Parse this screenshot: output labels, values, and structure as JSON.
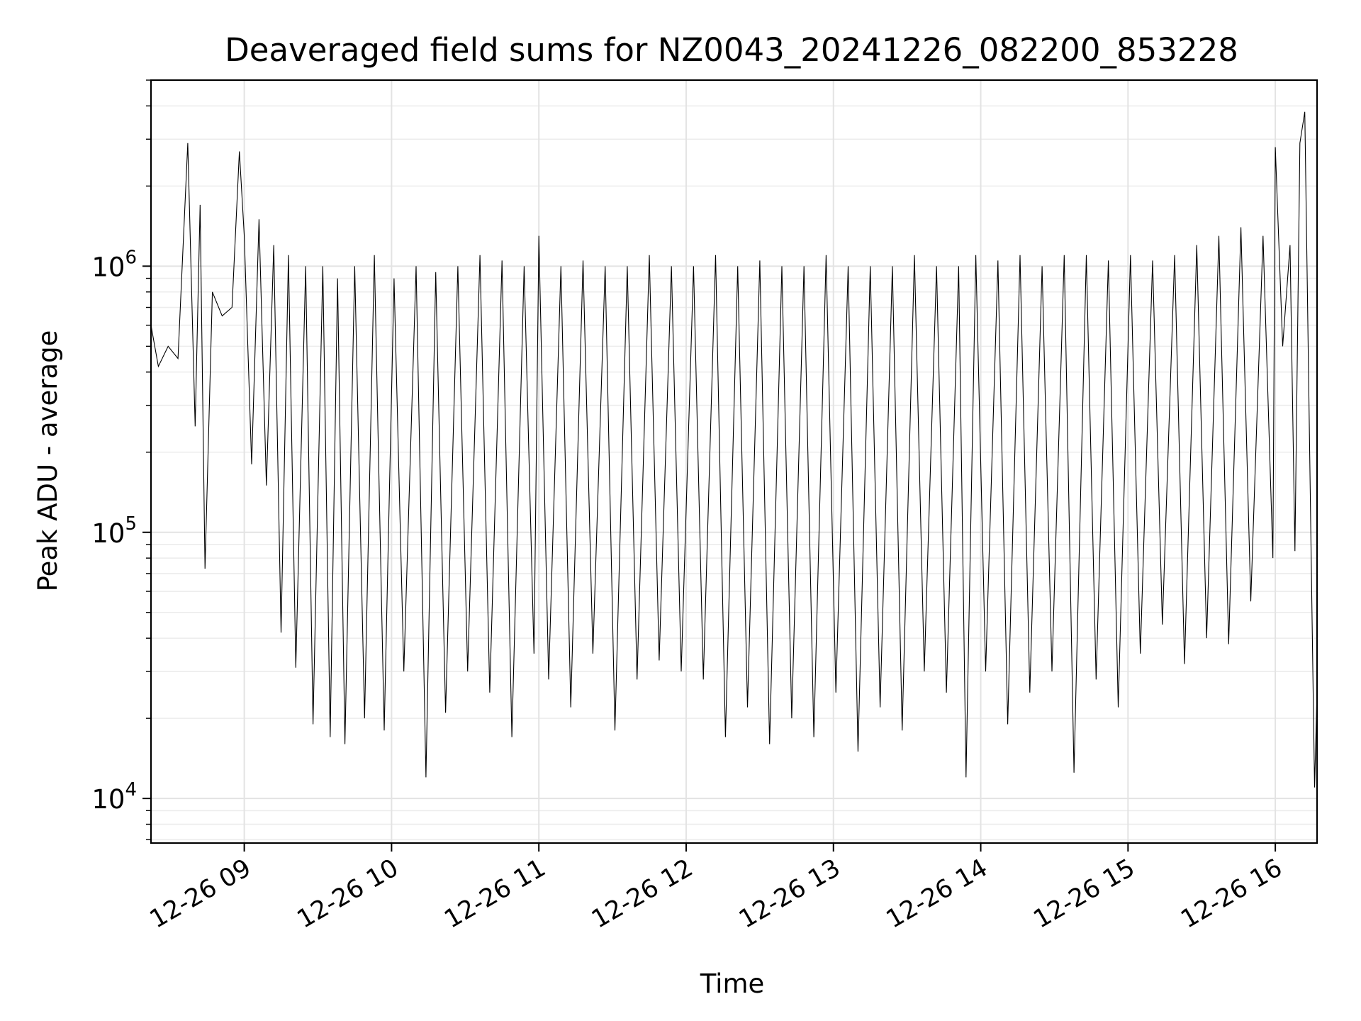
{
  "chart_data": {
    "type": "line",
    "title": "Deaveraged field sums for NZ0043_20241226_082200_853228",
    "xlabel": "Time",
    "ylabel": "Peak ADU - average",
    "yscale": "log",
    "grid": true,
    "x_range": [
      "12-26 08:22",
      "12-26 16:17"
    ],
    "y_range": [
      6800,
      5000000
    ],
    "x_ticks": [
      {
        "hour": 9,
        "label": "12-26 09"
      },
      {
        "hour": 10,
        "label": "12-26 10"
      },
      {
        "hour": 11,
        "label": "12-26 11"
      },
      {
        "hour": 12,
        "label": "12-26 12"
      },
      {
        "hour": 13,
        "label": "12-26 13"
      },
      {
        "hour": 14,
        "label": "12-26 14"
      },
      {
        "hour": 15,
        "label": "12-26 15"
      },
      {
        "hour": 16,
        "label": "12-26 16"
      }
    ],
    "y_ticks": [
      {
        "value": 10000,
        "base": "10",
        "exp": "4"
      },
      {
        "value": 100000,
        "base": "10",
        "exp": "5"
      },
      {
        "value": 1000000,
        "base": "10",
        "exp": "6"
      }
    ],
    "series": [
      {
        "color": "#000000",
        "points": [
          [
            "08:22",
            600000
          ],
          [
            "08:25",
            420000
          ],
          [
            "08:29",
            500000
          ],
          [
            "08:33",
            450000
          ],
          [
            "08:37",
            2900000
          ],
          [
            "08:40",
            250000
          ],
          [
            "08:42",
            1700000
          ],
          [
            "08:44",
            73000
          ],
          [
            "08:47",
            800000
          ],
          [
            "08:51",
            650000
          ],
          [
            "08:55",
            700000
          ],
          [
            "08:58",
            2700000
          ],
          [
            "09:00",
            1300000
          ],
          [
            "09:03",
            180000
          ],
          [
            "09:06",
            1500000
          ],
          [
            "09:09",
            150000
          ],
          [
            "09:12",
            1200000
          ],
          [
            "09:15",
            42000
          ],
          [
            "09:18",
            1100000
          ],
          [
            "09:21",
            31000
          ],
          [
            "09:25",
            1000000
          ],
          [
            "09:28",
            19000
          ],
          [
            "09:32",
            1000000
          ],
          [
            "09:35",
            17000
          ],
          [
            "09:38",
            900000
          ],
          [
            "09:41",
            16000
          ],
          [
            "09:45",
            1000000
          ],
          [
            "09:49",
            20000
          ],
          [
            "09:53",
            1100000
          ],
          [
            "09:57",
            18000
          ],
          [
            "10:01",
            900000
          ],
          [
            "10:05",
            30000
          ],
          [
            "10:10",
            1000000
          ],
          [
            "10:14",
            12000
          ],
          [
            "10:18",
            950000
          ],
          [
            "10:22",
            21000
          ],
          [
            "10:27",
            1000000
          ],
          [
            "10:31",
            30000
          ],
          [
            "10:36",
            1100000
          ],
          [
            "10:40",
            25000
          ],
          [
            "10:45",
            1050000
          ],
          [
            "10:49",
            17000
          ],
          [
            "10:54",
            1000000
          ],
          [
            "10:58",
            35000
          ],
          [
            "11:00",
            1300000
          ],
          [
            "11:04",
            28000
          ],
          [
            "11:09",
            1000000
          ],
          [
            "11:13",
            22000
          ],
          [
            "11:18",
            1050000
          ],
          [
            "11:22",
            35000
          ],
          [
            "11:27",
            1000000
          ],
          [
            "11:31",
            18000
          ],
          [
            "11:36",
            1000000
          ],
          [
            "11:40",
            28000
          ],
          [
            "11:45",
            1100000
          ],
          [
            "11:49",
            33000
          ],
          [
            "11:54",
            1000000
          ],
          [
            "11:58",
            30000
          ],
          [
            "12:03",
            1000000
          ],
          [
            "12:07",
            28000
          ],
          [
            "12:12",
            1100000
          ],
          [
            "12:16",
            17000
          ],
          [
            "12:21",
            1000000
          ],
          [
            "12:25",
            22000
          ],
          [
            "12:30",
            1050000
          ],
          [
            "12:34",
            16000
          ],
          [
            "12:39",
            1000000
          ],
          [
            "12:43",
            20000
          ],
          [
            "12:48",
            1000000
          ],
          [
            "12:52",
            17000
          ],
          [
            "12:57",
            1100000
          ],
          [
            "13:01",
            25000
          ],
          [
            "13:06",
            1000000
          ],
          [
            "13:10",
            15000
          ],
          [
            "13:15",
            1000000
          ],
          [
            "13:19",
            22000
          ],
          [
            "13:24",
            1000000
          ],
          [
            "13:28",
            18000
          ],
          [
            "13:33",
            1100000
          ],
          [
            "13:37",
            30000
          ],
          [
            "13:42",
            1000000
          ],
          [
            "13:46",
            25000
          ],
          [
            "13:51",
            1000000
          ],
          [
            "13:54",
            12000
          ],
          [
            "13:58",
            1100000
          ],
          [
            "14:02",
            30000
          ],
          [
            "14:07",
            1050000
          ],
          [
            "14:11",
            19000
          ],
          [
            "14:16",
            1100000
          ],
          [
            "14:20",
            25000
          ],
          [
            "14:25",
            1000000
          ],
          [
            "14:29",
            30000
          ],
          [
            "14:34",
            1100000
          ],
          [
            "14:38",
            12500
          ],
          [
            "14:43",
            1100000
          ],
          [
            "14:47",
            28000
          ],
          [
            "14:52",
            1050000
          ],
          [
            "14:56",
            22000
          ],
          [
            "15:01",
            1100000
          ],
          [
            "15:05",
            35000
          ],
          [
            "15:10",
            1050000
          ],
          [
            "15:14",
            45000
          ],
          [
            "15:19",
            1100000
          ],
          [
            "15:23",
            32000
          ],
          [
            "15:28",
            1200000
          ],
          [
            "15:32",
            40000
          ],
          [
            "15:37",
            1300000
          ],
          [
            "15:41",
            38000
          ],
          [
            "15:46",
            1400000
          ],
          [
            "15:50",
            55000
          ],
          [
            "15:55",
            1300000
          ],
          [
            "15:59",
            80000
          ],
          [
            "16:00",
            2800000
          ],
          [
            "16:03",
            500000
          ],
          [
            "16:06",
            1200000
          ],
          [
            "16:08",
            85000
          ],
          [
            "16:10",
            2900000
          ],
          [
            "16:12",
            3800000
          ],
          [
            "16:13",
            900000
          ],
          [
            "16:14",
            200000
          ],
          [
            "16:15",
            45000
          ],
          [
            "16:16",
            11000
          ],
          [
            "16:17",
            25000
          ]
        ]
      }
    ]
  }
}
